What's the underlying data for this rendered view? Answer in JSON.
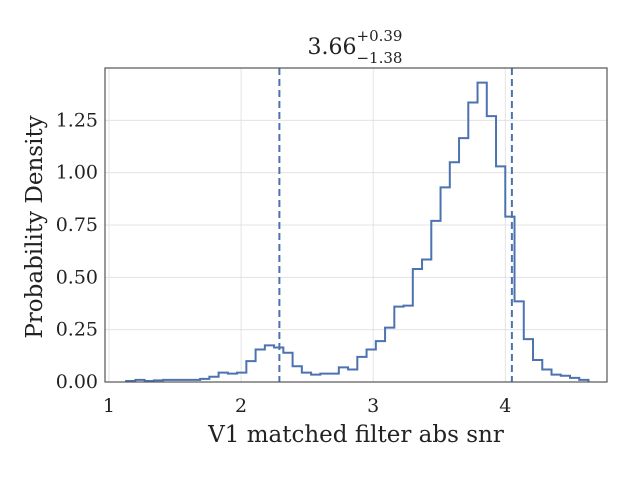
{
  "chart_data": {
    "type": "histogram-step",
    "title": {
      "main": "3.66",
      "sup": "+0.39",
      "sub": "−1.38"
    },
    "xlabel": "V1 matched filter abs snr",
    "ylabel": "Probability Density",
    "xlim": [
      0.97,
      4.77
    ],
    "ylim": [
      0.0,
      1.5
    ],
    "xticks": [
      {
        "value": 1,
        "label": "1"
      },
      {
        "value": 2,
        "label": "2"
      },
      {
        "value": 3,
        "label": "3"
      },
      {
        "value": 4,
        "label": "4"
      }
    ],
    "yticks": [
      {
        "value": 0.0,
        "label": "0.00"
      },
      {
        "value": 0.25,
        "label": "0.25"
      },
      {
        "value": 0.5,
        "label": "0.50"
      },
      {
        "value": 0.75,
        "label": "0.75"
      },
      {
        "value": 1.0,
        "label": "1.00"
      },
      {
        "value": 1.25,
        "label": "1.25"
      }
    ],
    "grid": true,
    "line_color": "#4c72b0",
    "bin_edges": [
      1.13,
      1.2,
      1.27,
      1.34,
      1.41,
      1.48,
      1.55,
      1.62,
      1.69,
      1.76,
      1.83,
      1.9,
      1.97,
      2.04,
      2.11,
      2.18,
      2.25,
      2.32,
      2.39,
      2.46,
      2.53,
      2.6,
      2.67,
      2.74,
      2.81,
      2.88,
      2.95,
      3.02,
      3.09,
      3.16,
      3.23,
      3.3,
      3.37,
      3.44,
      3.51,
      3.58,
      3.65,
      3.72,
      3.79,
      3.86,
      3.93,
      4.0,
      4.07,
      4.14,
      4.21,
      4.28,
      4.35,
      4.42,
      4.49,
      4.56,
      4.63
    ],
    "densities": [
      0.005,
      0.01,
      0.005,
      0.008,
      0.01,
      0.01,
      0.01,
      0.01,
      0.015,
      0.025,
      0.045,
      0.04,
      0.045,
      0.1,
      0.155,
      0.175,
      0.165,
      0.14,
      0.075,
      0.045,
      0.035,
      0.04,
      0.04,
      0.07,
      0.06,
      0.12,
      0.155,
      0.195,
      0.26,
      0.36,
      0.365,
      0.54,
      0.585,
      0.77,
      0.93,
      1.05,
      1.165,
      1.335,
      1.43,
      1.27,
      1.03,
      0.79,
      0.385,
      0.205,
      0.105,
      0.06,
      0.035,
      0.03,
      0.02,
      0.01
    ],
    "vlines": [
      2.29,
      4.05
    ]
  }
}
